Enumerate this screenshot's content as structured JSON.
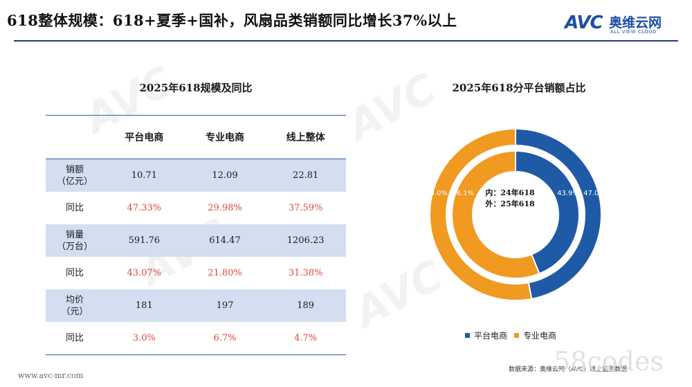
{
  "header": {
    "title": "618整体规模：618+夏季+国补，风扇品类销额同比增长37%以上",
    "logo_text": "AVC",
    "logo_cn": "奥维云网",
    "logo_en": "ALL VIEW CLOUD"
  },
  "watermark_text": "AVC 奥维云网",
  "table": {
    "title": "2025年618规模及同比",
    "columns": [
      "",
      "平台电商",
      "专业电商",
      "线上整体"
    ],
    "rows": [
      {
        "label": "销额\n（亿元）",
        "values": [
          "10.71",
          "12.09",
          "22.81"
        ],
        "highlight": false
      },
      {
        "label": "同比",
        "values": [
          "47.33%",
          "29.98%",
          "37.59%"
        ],
        "highlight": true
      },
      {
        "label": "销量\n（万台）",
        "values": [
          "591.76",
          "614.47",
          "1206.23"
        ],
        "highlight": false
      },
      {
        "label": "同比",
        "values": [
          "43.07%",
          "21.80%",
          "31.38%"
        ],
        "highlight": true
      },
      {
        "label": "均价\n（元）",
        "values": [
          "181",
          "197",
          "189"
        ],
        "highlight": false
      },
      {
        "label": "同比",
        "values": [
          "3.0%",
          "6.7%",
          "4.7%"
        ],
        "highlight": true
      }
    ]
  },
  "chart_data": {
    "type": "pie",
    "title": "2025年618分平台销额占比",
    "center_label_1": "内：24年618",
    "center_label_2": "外：25年618",
    "categories": [
      "平台电商",
      "专业电商"
    ],
    "colors": [
      "#1f5aa6",
      "#f09a22"
    ],
    "series": [
      {
        "ring": "inner",
        "values": [
          43.9,
          56.1
        ],
        "labels": [
          "43.9%",
          "56.1%"
        ]
      },
      {
        "ring": "outer",
        "values": [
          47.0,
          53.0
        ],
        "labels": [
          "47.0%",
          "53.0%"
        ]
      }
    ],
    "legend_position": "bottom"
  },
  "footer": {
    "url": "www.avc-mr.com",
    "source": "数据来源：奥维云网（AVC）线上监测数据",
    "stamp": "58codes"
  }
}
